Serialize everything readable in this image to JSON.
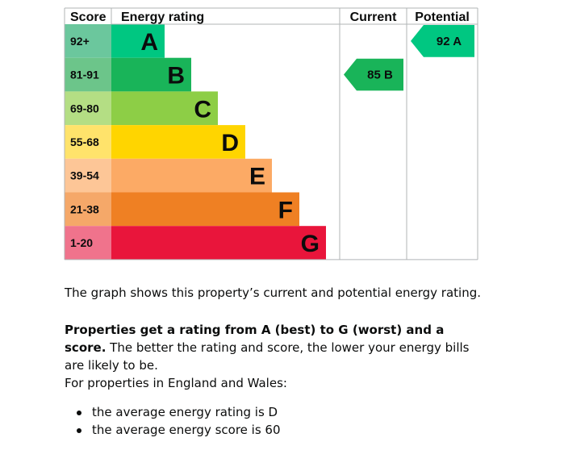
{
  "chart_data": {
    "type": "bar",
    "headers": {
      "score": "Score",
      "rating": "Energy rating",
      "current": "Current",
      "potential": "Potential"
    },
    "bands": [
      {
        "letter": "A",
        "range": "92+",
        "color": "#00c781",
        "range_bg": "#6bc79d"
      },
      {
        "letter": "B",
        "range": "81-91",
        "color": "#19b459",
        "range_bg": "#6cc58a"
      },
      {
        "letter": "C",
        "range": "69-80",
        "color": "#8dce46",
        "range_bg": "#b4de84"
      },
      {
        "letter": "D",
        "range": "55-68",
        "color": "#ffd500",
        "range_bg": "#ffe36b"
      },
      {
        "letter": "E",
        "range": "39-54",
        "color": "#fcaa65",
        "range_bg": "#fdc697"
      },
      {
        "letter": "F",
        "range": "21-38",
        "color": "#ef8023",
        "range_bg": "#f5a869"
      },
      {
        "letter": "G",
        "range": "1-20",
        "color": "#e9153b",
        "range_bg": "#f0738c"
      }
    ],
    "current": {
      "score": 85,
      "letter": "B",
      "label": "85 B",
      "color": "#19b459"
    },
    "potential": {
      "score": 92,
      "letter": "A",
      "label": "92 A",
      "color": "#00c781"
    }
  },
  "text": {
    "intro": "The graph shows this property’s current and potential energy rating.",
    "rating_bold": "Properties get a rating from A (best) to G (worst) and a score.",
    "rating_rest": " The better the rating and score, the lower your energy bills are likely to be.",
    "region": "For properties in England and Wales:",
    "bullet_rating": "the average energy rating is D",
    "bullet_score": "the average energy score is 60"
  }
}
